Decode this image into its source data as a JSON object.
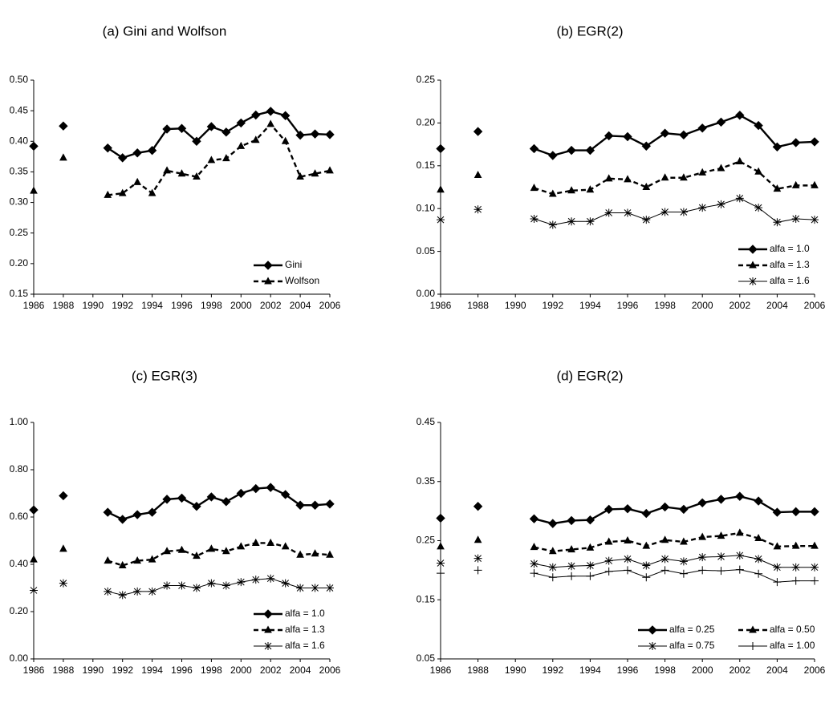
{
  "chart_data": [
    {
      "type": "line",
      "title": "(a) Gini and Wolfson",
      "x": [
        1986,
        1987,
        1988,
        1989,
        1990,
        1991,
        1992,
        1993,
        1994,
        1995,
        1996,
        1997,
        1998,
        1999,
        2000,
        2001,
        2002,
        2003,
        2004,
        2005,
        2006
      ],
      "xlim": [
        1986,
        2006
      ],
      "xticks": [
        1986,
        1988,
        1990,
        1992,
        1994,
        1996,
        1998,
        2000,
        2002,
        2004,
        2006
      ],
      "ylim": [
        0.15,
        0.5
      ],
      "yticks": [
        0.15,
        {
          "value": 0.2,
          "label": "0.20"
        },
        0.25,
        {
          "value": 0.3,
          "label": "0.30"
        },
        0.35,
        {
          "value": 0.4,
          "label": "0.40"
        },
        0.45,
        {
          "value": 0.5,
          "label": "0.50"
        }
      ],
      "legend": "lower right",
      "series": [
        {
          "name": "Gini",
          "color": "#000000",
          "marker": "diamond",
          "line_style": "thick",
          "values": [
            0.392,
            null,
            0.425,
            null,
            null,
            0.389,
            0.373,
            0.381,
            0.385,
            0.42,
            0.421,
            0.4,
            0.424,
            0.415,
            0.43,
            0.443,
            0.449,
            0.442,
            0.41,
            0.412,
            0.411
          ]
        },
        {
          "name": "Wolfson",
          "color": "#000000",
          "marker": "triangle",
          "line_style": "dashed",
          "values": [
            0.319,
            null,
            0.373,
            null,
            null,
            0.312,
            0.315,
            0.333,
            0.315,
            0.352,
            0.347,
            0.342,
            0.369,
            0.372,
            0.392,
            0.402,
            0.428,
            0.4,
            0.342,
            0.347,
            0.352
          ]
        }
      ]
    },
    {
      "type": "line",
      "title": "(b) EGR(2)",
      "x": [
        1986,
        1987,
        1988,
        1989,
        1990,
        1991,
        1992,
        1993,
        1994,
        1995,
        1996,
        1997,
        1998,
        1999,
        2000,
        2001,
        2002,
        2003,
        2004,
        2005,
        2006
      ],
      "xlim": [
        1986,
        2006
      ],
      "xticks": [
        1986,
        1988,
        1990,
        1992,
        1994,
        1996,
        1998,
        2000,
        2002,
        2004,
        2006
      ],
      "ylim": [
        0,
        0.25
      ],
      "yticks": [
        {
          "value": 0,
          "label": "0.00"
        },
        0.05,
        {
          "value": 0.1,
          "label": "0.10"
        },
        0.15,
        {
          "value": 0.2,
          "label": "0.20"
        },
        0.25
      ],
      "legend": "lower right",
      "series": [
        {
          "name": "alfa = 1.0",
          "color": "#000000",
          "marker": "diamond",
          "line_style": "thick",
          "values": [
            0.17,
            null,
            0.19,
            null,
            null,
            0.17,
            0.162,
            0.168,
            0.168,
            0.185,
            0.184,
            0.173,
            0.188,
            0.186,
            0.194,
            0.201,
            0.209,
            0.197,
            0.172,
            0.177,
            0.178
          ]
        },
        {
          "name": "alfa = 1.3",
          "color": "#000000",
          "marker": "triangle",
          "line_style": "dashed",
          "values": [
            0.122,
            null,
            0.139,
            null,
            null,
            0.124,
            0.117,
            0.121,
            0.122,
            0.135,
            0.134,
            0.125,
            0.136,
            0.136,
            0.142,
            0.147,
            0.155,
            0.143,
            0.123,
            0.127,
            0.127
          ]
        },
        {
          "name": "alfa = 1.6",
          "color": "#000000",
          "marker": "asterisk",
          "line_style": "thin",
          "values": [
            0.087,
            null,
            0.099,
            null,
            null,
            0.088,
            0.081,
            0.085,
            0.085,
            0.095,
            0.095,
            0.087,
            0.096,
            0.096,
            0.101,
            0.105,
            0.112,
            0.101,
            0.084,
            0.088,
            0.087
          ]
        }
      ]
    },
    {
      "type": "line",
      "title": "(c) EGR(3)",
      "x": [
        1986,
        1987,
        1988,
        1989,
        1990,
        1991,
        1992,
        1993,
        1994,
        1995,
        1996,
        1997,
        1998,
        1999,
        2000,
        2001,
        2002,
        2003,
        2004,
        2005,
        2006
      ],
      "xlim": [
        1986,
        2006
      ],
      "xticks": [
        1986,
        1988,
        1990,
        1992,
        1994,
        1996,
        1998,
        2000,
        2002,
        2004,
        2006
      ],
      "ylim": [
        0,
        1
      ],
      "yticks": [
        {
          "value": 0,
          "label": "0.00"
        },
        {
          "value": 0.2,
          "label": "0.20"
        },
        {
          "value": 0.4,
          "label": "0.40"
        },
        {
          "value": 0.6,
          "label": "0.60"
        },
        {
          "value": 0.8,
          "label": "0.80"
        },
        {
          "value": 1,
          "label": "1.00"
        }
      ],
      "legend": "lower right",
      "series": [
        {
          "name": "alfa = 1.0",
          "color": "#000000",
          "marker": "diamond",
          "line_style": "thick",
          "values": [
            0.63,
            null,
            0.69,
            null,
            null,
            0.62,
            0.59,
            0.61,
            0.62,
            0.675,
            0.68,
            0.645,
            0.685,
            0.665,
            0.7,
            0.72,
            0.725,
            0.695,
            0.65,
            0.65,
            0.655
          ]
        },
        {
          "name": "alfa = 1.3",
          "color": "#000000",
          "marker": "triangle",
          "line_style": "dashed",
          "values": [
            0.42,
            null,
            0.465,
            null,
            null,
            0.415,
            0.395,
            0.415,
            0.42,
            0.455,
            0.46,
            0.435,
            0.465,
            0.455,
            0.475,
            0.49,
            0.49,
            0.475,
            0.44,
            0.445,
            0.44
          ]
        },
        {
          "name": "alfa = 1.6",
          "color": "#000000",
          "marker": "asterisk",
          "line_style": "thin",
          "values": [
            0.29,
            null,
            0.32,
            null,
            null,
            0.285,
            0.27,
            0.285,
            0.285,
            0.31,
            0.31,
            0.3,
            0.32,
            0.31,
            0.325,
            0.335,
            0.34,
            0.32,
            0.3,
            0.3,
            0.3
          ]
        }
      ]
    },
    {
      "type": "line",
      "title": "(d) EGR(2)",
      "x": [
        1986,
        1987,
        1988,
        1989,
        1990,
        1991,
        1992,
        1993,
        1994,
        1995,
        1996,
        1997,
        1998,
        1999,
        2000,
        2001,
        2002,
        2003,
        2004,
        2005,
        2006
      ],
      "xlim": [
        1986,
        2006
      ],
      "xticks": [
        1986,
        1988,
        1990,
        1992,
        1994,
        1996,
        1998,
        2000,
        2002,
        2004,
        2006
      ],
      "ylim": [
        0.05,
        0.45
      ],
      "yticks": [
        0.05,
        0.15,
        0.25,
        0.35,
        0.45
      ],
      "legend": "lower right",
      "series": [
        {
          "name": "alfa = 0.25",
          "color": "#000000",
          "marker": "diamond",
          "line_style": "thick",
          "values": [
            0.288,
            null,
            0.308,
            null,
            null,
            0.287,
            0.279,
            0.284,
            0.285,
            0.303,
            0.304,
            0.296,
            0.307,
            0.303,
            0.314,
            0.32,
            0.325,
            0.317,
            0.298,
            0.299,
            0.299
          ]
        },
        {
          "name": "alfa = 0.50",
          "color": "#000000",
          "marker": "triangle",
          "line_style": "dashed",
          "values": [
            0.24,
            null,
            0.251,
            null,
            null,
            0.239,
            0.232,
            0.235,
            0.238,
            0.248,
            0.25,
            0.241,
            0.251,
            0.248,
            0.256,
            0.258,
            0.263,
            0.254,
            0.24,
            0.241,
            0.241
          ]
        },
        {
          "name": "alfa = 0.75",
          "color": "#000000",
          "marker": "asterisk",
          "line_style": "thin",
          "values": [
            0.212,
            null,
            0.22,
            null,
            null,
            0.211,
            0.205,
            0.207,
            0.208,
            0.216,
            0.219,
            0.208,
            0.219,
            0.215,
            0.222,
            0.223,
            0.225,
            0.219,
            0.205,
            0.205,
            0.205
          ]
        },
        {
          "name": "alfa = 1.00",
          "color": "#000000",
          "marker": "plus",
          "line_style": "thin",
          "values": [
            0.195,
            null,
            0.2,
            null,
            null,
            0.195,
            0.188,
            0.19,
            0.19,
            0.198,
            0.2,
            0.188,
            0.2,
            0.194,
            0.2,
            0.199,
            0.201,
            0.194,
            0.18,
            0.182,
            0.182
          ]
        }
      ]
    }
  ]
}
